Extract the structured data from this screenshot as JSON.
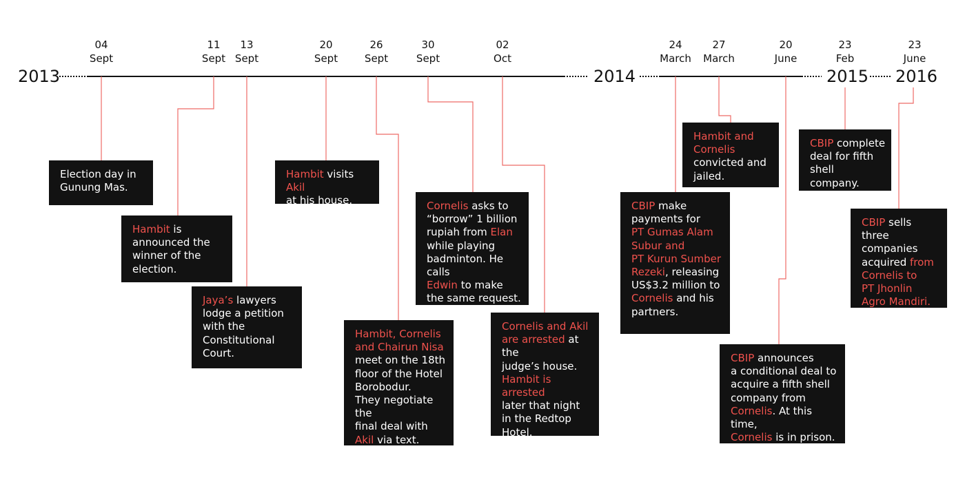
{
  "colors": {
    "background": "#ffffff",
    "axis": "#111111",
    "connector": "#ee6a66",
    "box": "#121212",
    "box_text": "#ffffff",
    "highlight": "#f0524d"
  },
  "years": [
    "2013",
    "2014",
    "2015",
    "2016"
  ],
  "ticks": [
    {
      "day": "04",
      "month": "Sept"
    },
    {
      "day": "11",
      "month": "Sept"
    },
    {
      "day": "13",
      "month": "Sept"
    },
    {
      "day": "20",
      "month": "Sept"
    },
    {
      "day": "26",
      "month": "Sept"
    },
    {
      "day": "30",
      "month": "Sept"
    },
    {
      "day": "02",
      "month": "Oct"
    },
    {
      "day": "24",
      "month": "March"
    },
    {
      "day": "27",
      "month": "March"
    },
    {
      "day": "20",
      "month": "June"
    },
    {
      "day": "23",
      "month": "Feb"
    },
    {
      "day": "23",
      "month": "June"
    }
  ],
  "events": [
    {
      "lines": [
        [
          {
            "t": "Election day in"
          }
        ],
        [
          {
            "t": "Gunung Mas."
          }
        ]
      ]
    },
    {
      "lines": [
        [
          {
            "t": "Hambit",
            "h": true
          },
          {
            "t": " is"
          }
        ],
        [
          {
            "t": "announced the"
          }
        ],
        [
          {
            "t": "winner of the"
          }
        ],
        [
          {
            "t": "election."
          }
        ]
      ]
    },
    {
      "lines": [
        [
          {
            "t": "Jaya’s",
            "h": true
          },
          {
            "t": " lawyers"
          }
        ],
        [
          {
            "t": "lodge a petition"
          }
        ],
        [
          {
            "t": "with the"
          }
        ],
        [
          {
            "t": "Constitutional"
          }
        ],
        [
          {
            "t": "Court."
          }
        ]
      ]
    },
    {
      "lines": [
        [
          {
            "t": "Hambit",
            "h": true
          },
          {
            "t": " visits "
          },
          {
            "t": "Akil",
            "h": true
          }
        ],
        [
          {
            "t": "at his house."
          }
        ]
      ]
    },
    {
      "lines": [
        [
          {
            "t": "Hambit, Cornelis",
            "h": true
          }
        ],
        [
          {
            "t": "and Chairun Nisa",
            "h": true
          }
        ],
        [
          {
            "t": "meet on the 18th"
          }
        ],
        [
          {
            "t": "floor of the Hotel"
          }
        ],
        [
          {
            "t": "Borobodur."
          }
        ],
        [
          {
            "t": "They negotiate the"
          }
        ],
        [
          {
            "t": "final deal with"
          }
        ],
        [
          {
            "t": "Akil",
            "h": true
          },
          {
            "t": " via text."
          }
        ]
      ]
    },
    {
      "lines": [
        [
          {
            "t": "Cornelis",
            "h": true
          },
          {
            "t": " asks to"
          }
        ],
        [
          {
            "t": "“borrow” 1 billion"
          }
        ],
        [
          {
            "t": "rupiah from "
          },
          {
            "t": "Elan",
            "h": true
          }
        ],
        [
          {
            "t": "while playing"
          }
        ],
        [
          {
            "t": "badminton. He calls"
          }
        ],
        [
          {
            "t": "Edwin",
            "h": true
          },
          {
            "t": " to make"
          }
        ],
        [
          {
            "t": "the same request."
          }
        ]
      ]
    },
    {
      "lines": [
        [
          {
            "t": "Cornelis and Akil",
            "h": true
          }
        ],
        [
          {
            "t": "are arrested",
            "h": true
          },
          {
            "t": " at the"
          }
        ],
        [
          {
            "t": "judge’s house."
          }
        ],
        [
          {
            "t": "Hambit is arrested",
            "h": true
          }
        ],
        [
          {
            "t": "later that night"
          }
        ],
        [
          {
            "t": "in the Redtop"
          }
        ],
        [
          {
            "t": "Hotel."
          }
        ]
      ]
    },
    {
      "lines": [
        [
          {
            "t": "CBIP",
            "h": true
          },
          {
            "t": " make"
          }
        ],
        [
          {
            "t": "payments for"
          }
        ],
        [
          {
            "t": "PT Gumas Alam",
            "h": true
          }
        ],
        [
          {
            "t": "Subur and",
            "h": true
          }
        ],
        [
          {
            "t": "PT Kurun Sumber",
            "h": true
          }
        ],
        [
          {
            "t": "Rezeki",
            "h": true
          },
          {
            "t": ", releasing"
          }
        ],
        [
          {
            "t": "US$3.2 million to"
          }
        ],
        [
          {
            "t": "Cornelis",
            "h": true
          },
          {
            "t": " and his"
          }
        ],
        [
          {
            "t": "partners."
          }
        ]
      ]
    },
    {
      "lines": [
        [
          {
            "t": "Hambit and",
            "h": true
          }
        ],
        [
          {
            "t": "Cornelis",
            "h": true
          }
        ],
        [
          {
            "t": "convicted and"
          }
        ],
        [
          {
            "t": "jailed."
          }
        ]
      ]
    },
    {
      "lines": [
        [
          {
            "t": "CBIP",
            "h": true
          },
          {
            "t": " announces"
          }
        ],
        [
          {
            "t": "a conditional deal to"
          }
        ],
        [
          {
            "t": "acquire a fifth shell"
          }
        ],
        [
          {
            "t": "company from"
          }
        ],
        [
          {
            "t": "Cornelis",
            "h": true
          },
          {
            "t": ". At this time,"
          }
        ],
        [
          {
            "t": "Cornelis",
            "h": true
          },
          {
            "t": " is in prison."
          }
        ]
      ]
    },
    {
      "lines": [
        [
          {
            "t": "CBIP",
            "h": true
          },
          {
            "t": " complete"
          }
        ],
        [
          {
            "t": "deal for fifth"
          }
        ],
        [
          {
            "t": "shell company."
          }
        ]
      ]
    },
    {
      "lines": [
        [
          {
            "t": "CBIP",
            "h": true
          },
          {
            "t": " sells three"
          }
        ],
        [
          {
            "t": "companies"
          }
        ],
        [
          {
            "t": "acquired "
          },
          {
            "t": "from",
            "h": true
          }
        ],
        [
          {
            "t": "Cornelis to",
            "h": true
          }
        ],
        [
          {
            "t": "PT Jhonlin",
            "h": true
          }
        ],
        [
          {
            "t": "Agro Mandiri.",
            "h": true
          }
        ]
      ]
    }
  ]
}
